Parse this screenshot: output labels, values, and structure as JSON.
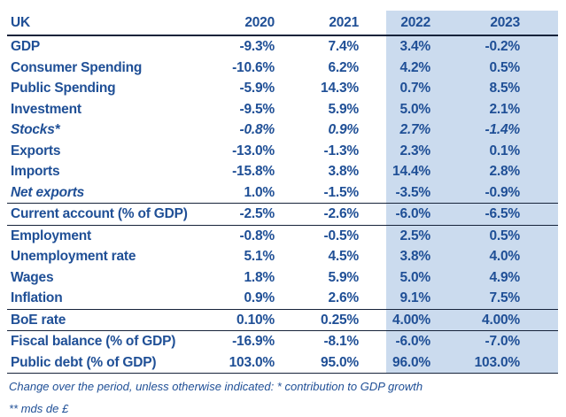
{
  "table": {
    "header": {
      "label": "UK",
      "years": [
        "2020",
        "2021",
        "2022",
        "2023"
      ]
    },
    "highlighted_years": [
      "2022",
      "2023"
    ],
    "rows": [
      {
        "label": "GDP",
        "values": [
          "-9.3%",
          "7.4%",
          "3.4%",
          "-0.2%"
        ],
        "italic": "none",
        "separator_after": false
      },
      {
        "label": "Consumer Spending",
        "values": [
          "-10.6%",
          "6.2%",
          "4.2%",
          "0.5%"
        ],
        "italic": "none",
        "separator_after": false
      },
      {
        "label": "Public Spending",
        "values": [
          "-5.9%",
          "14.3%",
          "0.7%",
          "8.5%"
        ],
        "italic": "none",
        "separator_after": false
      },
      {
        "label": "Investment",
        "values": [
          "-9.5%",
          "5.9%",
          "5.0%",
          "2.1%"
        ],
        "italic": "none",
        "separator_after": false
      },
      {
        "label": "Stocks*",
        "values": [
          "-0.8%",
          "0.9%",
          "2.7%",
          "-1.4%"
        ],
        "italic": "full",
        "separator_after": false
      },
      {
        "label": "Exports",
        "values": [
          "-13.0%",
          "-1.3%",
          "2.3%",
          "0.1%"
        ],
        "italic": "none",
        "separator_after": false
      },
      {
        "label": "Imports",
        "values": [
          "-15.8%",
          "3.8%",
          "14.4%",
          "2.8%"
        ],
        "italic": "none",
        "separator_after": false
      },
      {
        "label": "Net exports",
        "values": [
          "1.0%",
          "-1.5%",
          "-3.5%",
          "-0.9%"
        ],
        "italic": "label",
        "separator_after": true
      },
      {
        "label": "Current account (% of GDP)",
        "values": [
          "-2.5%",
          "-2.6%",
          "-6.0%",
          "-6.5%"
        ],
        "italic": "none",
        "separator_after": true
      },
      {
        "label": "Employment",
        "values": [
          "-0.8%",
          "-0.5%",
          "2.5%",
          "0.5%"
        ],
        "italic": "none",
        "separator_after": false
      },
      {
        "label": "Unemployment rate",
        "values": [
          "5.1%",
          "4.5%",
          "3.8%",
          "4.0%"
        ],
        "italic": "none",
        "separator_after": false
      },
      {
        "label": "Wages",
        "values": [
          "1.8%",
          "5.9%",
          "5.0%",
          "4.9%"
        ],
        "italic": "none",
        "separator_after": false
      },
      {
        "label": "Inflation",
        "values": [
          "0.9%",
          "2.6%",
          "9.1%",
          "7.5%"
        ],
        "italic": "none",
        "separator_after": true
      },
      {
        "label": "BoE rate",
        "values": [
          "0.10%",
          "0.25%",
          "4.00%",
          "4.00%"
        ],
        "italic": "none",
        "separator_after": true
      },
      {
        "label": "Fiscal balance (% of GDP)",
        "values": [
          "-16.9%",
          "-8.1%",
          "-6.0%",
          "-7.0%"
        ],
        "italic": "none",
        "separator_after": false
      },
      {
        "label": "Public debt (% of GDP)",
        "values": [
          "103.0%",
          "95.0%",
          "96.0%",
          "103.0%"
        ],
        "italic": "none",
        "separator_after": true
      }
    ]
  },
  "footnotes": [
    "Change over the period, unless otherwise indicated: * contribution to GDP growth",
    "** mds de £"
  ],
  "colors": {
    "text_blue": "#1f4f96",
    "rule_navy": "#16233a",
    "highlight_blue": "#cbdbee",
    "background": "#ffffff"
  }
}
